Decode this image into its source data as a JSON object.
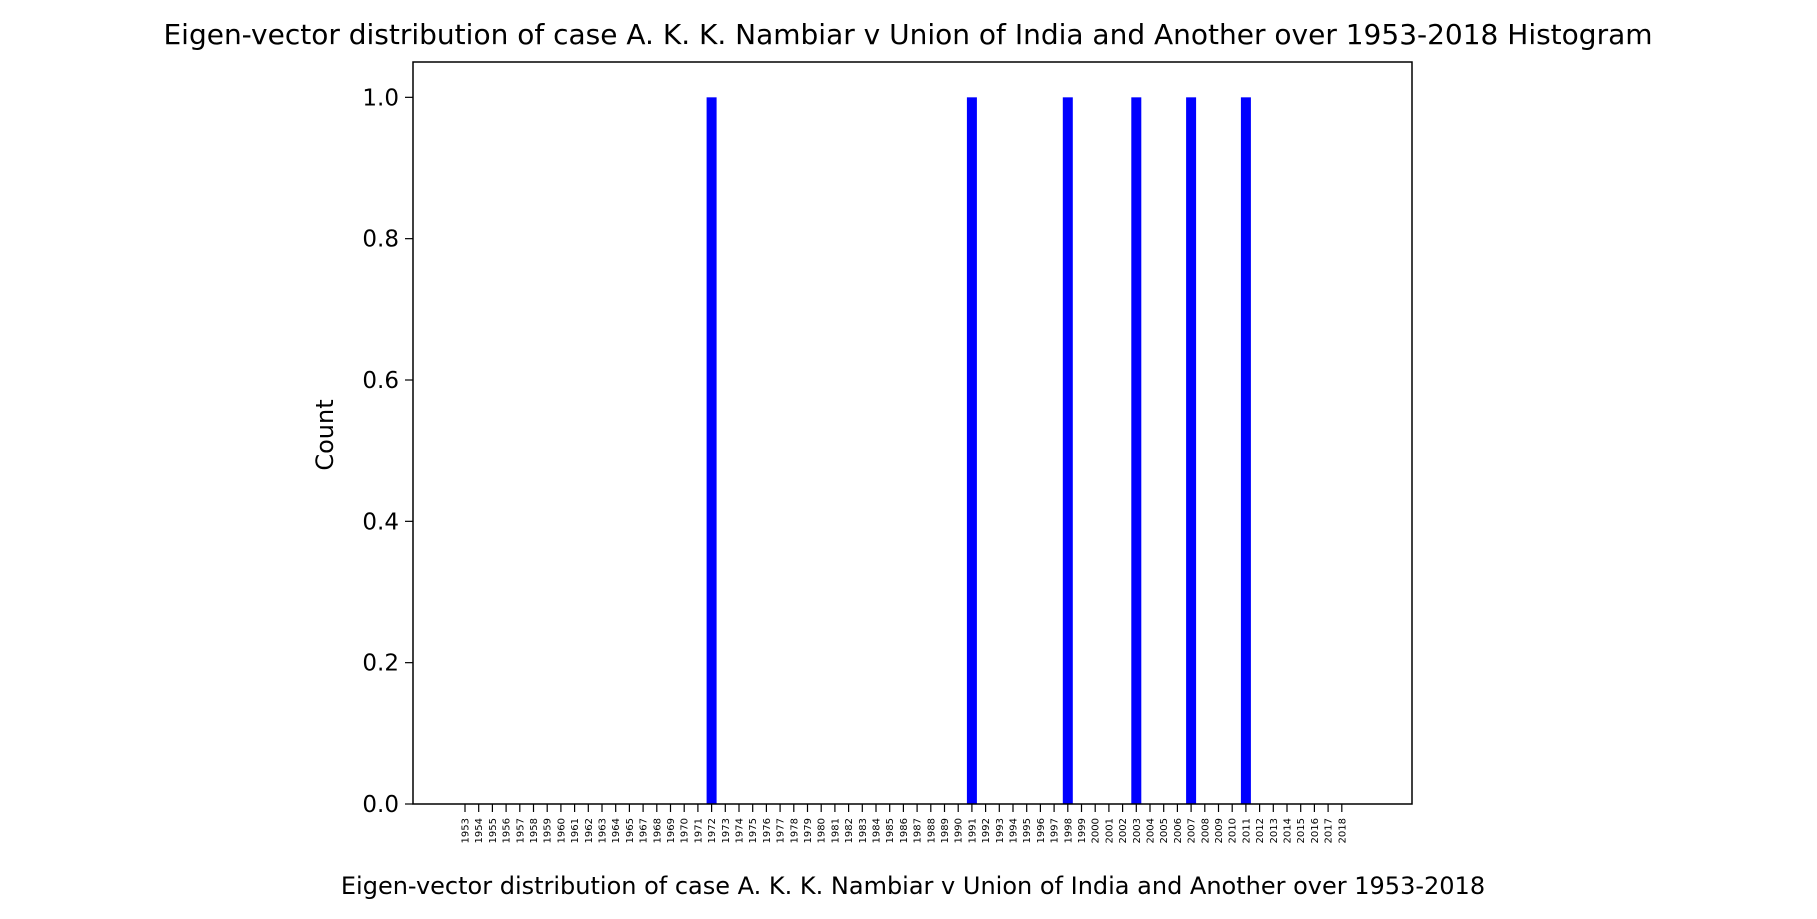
{
  "chart_data": {
    "type": "bar",
    "title": "Eigen-vector distribution of case A. K. K. Nambiar v Union of India and Another over 1953-2018 Histogram",
    "xlabel": "Eigen-vector distribution of case A. K. K. Nambiar v Union of India and Another over 1953-2018",
    "ylabel": "Count",
    "ylim": [
      0,
      1.05
    ],
    "yticks": [
      "0.0",
      "0.2",
      "0.4",
      "0.6",
      "0.8",
      "1.0"
    ],
    "bar_color": "#0000ff",
    "grid": false,
    "categories": [
      "1953",
      "1954",
      "1955",
      "1956",
      "1957",
      "1958",
      "1959",
      "1960",
      "1961",
      "1962",
      "1963",
      "1964",
      "1965",
      "1967",
      "1968",
      "1969",
      "1970",
      "1971",
      "1972",
      "1973",
      "1974",
      "1975",
      "1976",
      "1977",
      "1978",
      "1979",
      "1980",
      "1981",
      "1982",
      "1983",
      "1984",
      "1985",
      "1986",
      "1987",
      "1988",
      "1989",
      "1990",
      "1991",
      "1992",
      "1993",
      "1994",
      "1995",
      "1996",
      "1997",
      "1998",
      "1999",
      "2000",
      "2001",
      "2002",
      "2003",
      "2004",
      "2005",
      "2006",
      "2007",
      "2008",
      "2009",
      "2010",
      "2011",
      "2012",
      "2013",
      "2014",
      "2015",
      "2016",
      "2017",
      "2018"
    ],
    "values": [
      0,
      0,
      0,
      0,
      0,
      0,
      0,
      0,
      0,
      0,
      0,
      0,
      0,
      0,
      0,
      0,
      0,
      0,
      1,
      0,
      0,
      0,
      0,
      0,
      0,
      0,
      0,
      0,
      0,
      0,
      0,
      0,
      0,
      0,
      0,
      0,
      0,
      1,
      0,
      0,
      0,
      0,
      0,
      0,
      1,
      0,
      0,
      0,
      0,
      1,
      0,
      0,
      0,
      1,
      0,
      0,
      0,
      1,
      0,
      0,
      0,
      0,
      0,
      0,
      0
    ]
  }
}
